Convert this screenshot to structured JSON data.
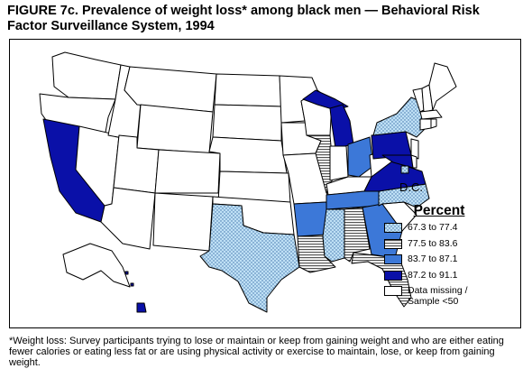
{
  "figure": {
    "title": "FIGURE 7c. Prevalence of weight loss* among black men — Behavioral Risk Factor Surveillance System, 1994"
  },
  "map": {
    "inset_label": "D.C."
  },
  "legend": {
    "title": "Percent",
    "categories": [
      {
        "label": "67.3 to 77.4",
        "pattern": "light-dots",
        "color": "#bfe0f5"
      },
      {
        "label": "77.5 to 83.6",
        "pattern": "horizontal-lines",
        "color": "#a9a9a9"
      },
      {
        "label": "83.7 to 87.1",
        "pattern": "medium-blue",
        "color": "#3c78d8"
      },
      {
        "label": "87.2 to 91.1",
        "pattern": "dark-blue",
        "color": "#0a10a8"
      },
      {
        "label": "Data missing / Sample <50",
        "pattern": "none",
        "color": "#ffffff"
      }
    ]
  },
  "states": {
    "light-dots": [
      "NY",
      "NC",
      "MS",
      "TX",
      "DC"
    ],
    "horizontal-lines": [
      "IL",
      "LA",
      "AL",
      "FL"
    ],
    "medium-blue": [
      "AR",
      "TN",
      "GA",
      "OH"
    ],
    "dark-blue": [
      "CA",
      "MI",
      "PA",
      "VA",
      "MD",
      "HI"
    ]
  },
  "footnote": "*Weight loss: Survey participants trying to lose or maintain or keep from gaining weight and who are either eating fewer calories or eating less fat or are using physical activity or exercise to maintain, lose, or keep from gaining weight."
}
